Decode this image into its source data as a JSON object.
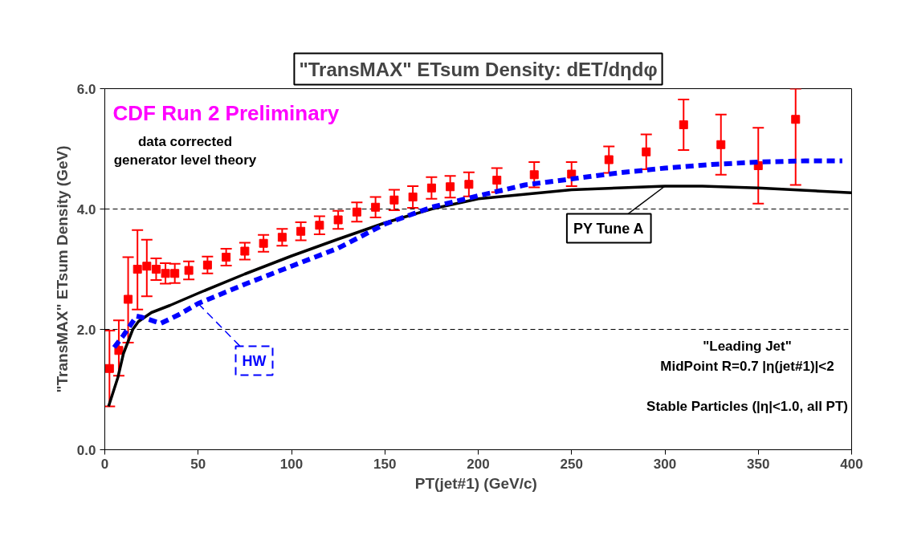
{
  "chart_data": {
    "type": "scatter",
    "title": "\"TransMAX\" ETsum Density: dET/dηdφ",
    "xlabel": "PT(jet#1)  (GeV/c)",
    "ylabel": "\"TransMAX\" ETsum Density (GeV)",
    "xlim": [
      0,
      400
    ],
    "xticks": [
      0,
      50,
      100,
      150,
      200,
      250,
      300,
      350,
      400
    ],
    "ylim": [
      0,
      6
    ],
    "yticks": [
      {
        "value": 0,
        "label": "0.0"
      },
      {
        "value": 2,
        "label": "2.0"
      },
      {
        "value": 4,
        "label": "4.0"
      },
      {
        "value": 6,
        "label": "6.0"
      }
    ],
    "grid": "y",
    "legend": false,
    "annotations": [
      "CDF Run 2 Preliminary",
      "data corrected",
      "generator level theory",
      "\"Leading Jet\"",
      "MidPoint R=0.7 |η(jet#1)|<2",
      "Stable Particles (|η|<1.0, all PT)"
    ],
    "series": [
      {
        "type": "scatter",
        "marker": "square",
        "color": "#ff0000",
        "x": [
          2.5,
          7.5,
          12.5,
          17.5,
          22.5,
          27.5,
          32.5,
          37.5,
          45,
          55,
          65,
          75,
          85,
          95,
          105,
          115,
          125,
          135,
          145,
          155,
          165,
          175,
          185,
          195,
          210,
          230,
          250,
          270,
          290,
          310,
          330,
          350,
          370
        ],
        "values": [
          1.35,
          1.65,
          2.5,
          3.0,
          3.05,
          3.0,
          2.93,
          2.93,
          2.98,
          3.07,
          3.2,
          3.3,
          3.43,
          3.53,
          3.63,
          3.73,
          3.82,
          3.95,
          4.03,
          4.15,
          4.2,
          4.35,
          4.37,
          4.41,
          4.48,
          4.57,
          4.58,
          4.82,
          4.95,
          5.4,
          5.07,
          4.72,
          5.49
        ],
        "errors": [
          [
            0.72,
            1.98
          ],
          [
            1.23,
            2.15
          ],
          [
            1.78,
            3.2
          ],
          [
            2.33,
            3.65
          ],
          [
            2.55,
            3.49
          ],
          [
            2.82,
            3.18
          ],
          [
            2.76,
            3.1
          ],
          [
            2.77,
            3.09
          ],
          [
            2.83,
            3.13
          ],
          [
            2.93,
            3.21
          ],
          [
            3.06,
            3.34
          ],
          [
            3.16,
            3.44
          ],
          [
            3.29,
            3.57
          ],
          [
            3.39,
            3.67
          ],
          [
            3.48,
            3.78
          ],
          [
            3.58,
            3.88
          ],
          [
            3.67,
            3.97
          ],
          [
            3.79,
            4.11
          ],
          [
            3.86,
            4.2
          ],
          [
            3.98,
            4.32
          ],
          [
            4.02,
            4.38
          ],
          [
            4.17,
            4.53
          ],
          [
            4.19,
            4.55
          ],
          [
            4.21,
            4.61
          ],
          [
            4.28,
            4.68
          ],
          [
            4.36,
            4.78
          ],
          [
            4.38,
            4.78
          ],
          [
            4.6,
            5.04
          ],
          [
            4.66,
            5.24
          ],
          [
            4.98,
            5.82
          ],
          [
            4.57,
            5.57
          ],
          [
            4.09,
            5.35
          ],
          [
            4.4,
            6.0
          ]
        ]
      },
      {
        "type": "line",
        "name": "PY Tune A",
        "color": "#000000",
        "line_style": "solid",
        "x": [
          2,
          7,
          10,
          15,
          18,
          25,
          35,
          50,
          75,
          100,
          125,
          150,
          175,
          200,
          250,
          300,
          320,
          350,
          400
        ],
        "values": [
          0.72,
          1.2,
          1.6,
          2.0,
          2.13,
          2.28,
          2.4,
          2.6,
          2.92,
          3.22,
          3.5,
          3.77,
          4.0,
          4.17,
          4.32,
          4.38,
          4.38,
          4.35,
          4.27
        ]
      },
      {
        "type": "line",
        "name": "HW",
        "color": "#0000ff",
        "line_style": "dashed",
        "x": [
          5,
          10,
          17,
          20,
          30,
          40,
          50,
          75,
          100,
          125,
          150,
          175,
          200,
          225,
          250,
          275,
          300,
          325,
          350,
          375,
          395
        ],
        "values": [
          1.7,
          1.9,
          2.22,
          2.2,
          2.1,
          2.25,
          2.43,
          2.75,
          3.05,
          3.35,
          3.75,
          4.03,
          4.22,
          4.4,
          4.5,
          4.6,
          4.68,
          4.74,
          4.78,
          4.8,
          4.8
        ]
      }
    ]
  }
}
